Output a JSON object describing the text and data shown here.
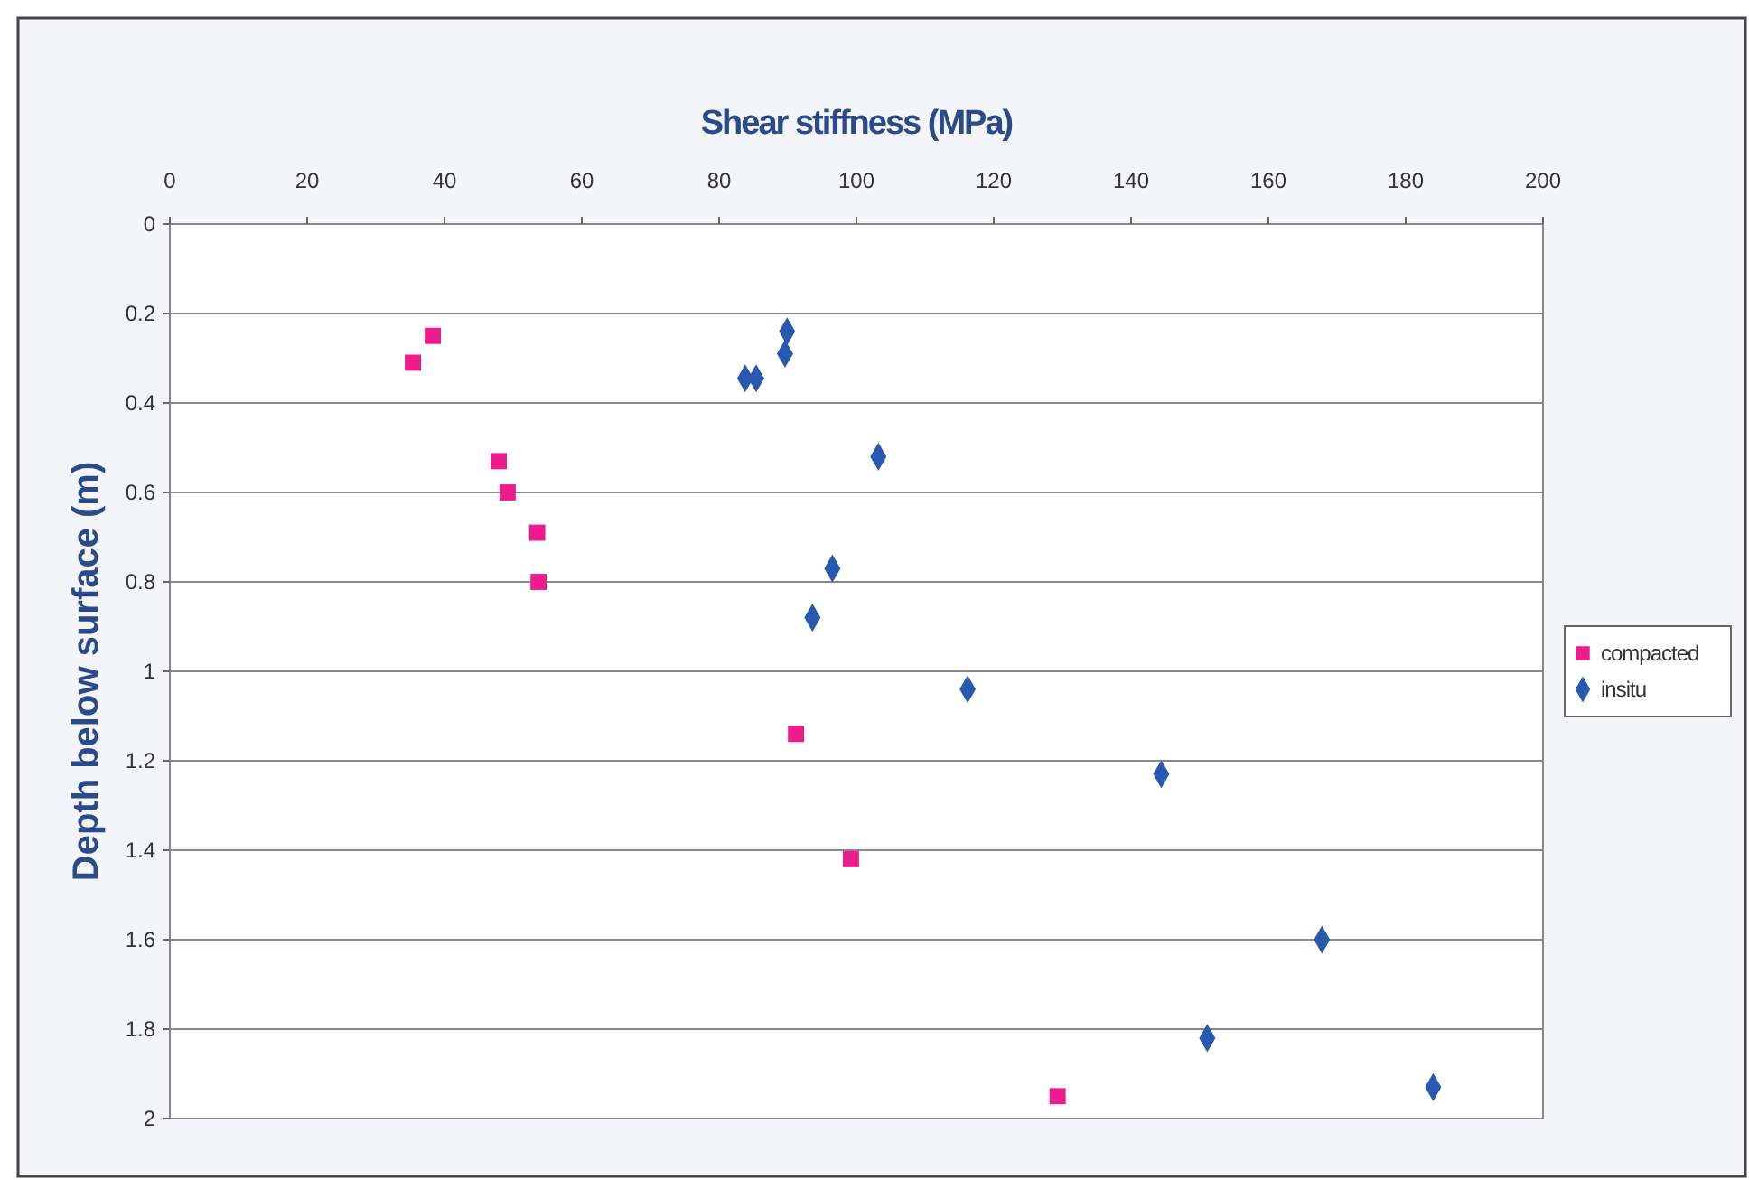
{
  "chart_data": {
    "type": "scatter",
    "xlabel": "Shear stiffness (MPa)",
    "ylabel": "Depth below surface (m)",
    "xlim": [
      0,
      200
    ],
    "xticks": [
      0,
      20,
      40,
      60,
      80,
      100,
      120,
      140,
      160,
      180,
      200
    ],
    "ylim": [
      2,
      0
    ],
    "yticks": [
      0,
      0.2,
      0.4,
      0.6,
      0.8,
      1,
      1.2,
      1.4,
      1.6,
      1.8,
      2
    ],
    "grid": "y",
    "legend": "right",
    "series": [
      {
        "name": "compacted",
        "color": "#ec1c8c",
        "marker": "square",
        "x": [
          38.3,
          35.4,
          47.9,
          49.2,
          53.5,
          53.7,
          91.2,
          99.2,
          129.3
        ],
        "values": [
          0.25,
          0.31,
          0.53,
          0.6,
          0.69,
          0.8,
          1.14,
          1.42,
          1.95
        ]
      },
      {
        "name": "insitu",
        "color": "#2858b0",
        "marker": "diamond",
        "x": [
          89.9,
          89.6,
          83.8,
          85.4,
          103.2,
          96.5,
          93.6,
          116.2,
          144.4,
          167.8,
          151.1,
          184
        ],
        "values": [
          0.24,
          0.29,
          0.345,
          0.345,
          0.52,
          0.77,
          0.88,
          1.04,
          1.23,
          1.6,
          1.82,
          1.93
        ]
      }
    ]
  }
}
